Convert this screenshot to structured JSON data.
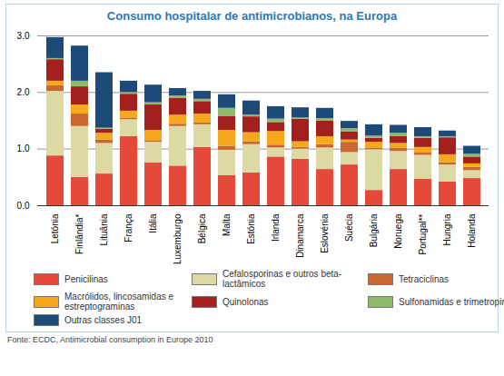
{
  "chart_data": {
    "type": "bar",
    "stacked": true,
    "grid": true,
    "legend": "bottom",
    "title": "Consumo hospitalar de antimicrobianos, na Europa",
    "source": "Fonte: ECDC, Antimicrobial consumption in Europe 2010",
    "categories": [
      "Letónia",
      "Finlândia*",
      "Lituânia",
      "França",
      "Itália",
      "Luxemburgo",
      "Bélgica",
      "Malta",
      "Estónia",
      "Irlanda",
      "Dinamarca",
      "Eslovénia",
      "Suécia",
      "Bulgária",
      "Noruega",
      "Portugal**",
      "Hungria",
      "Holanda"
    ],
    "ylim": [
      0,
      3
    ],
    "yticks": [
      0,
      1,
      2,
      3
    ],
    "series": [
      {
        "name": "Penicilinas",
        "color": "#e5493a",
        "values": [
          0.88,
          0.5,
          0.56,
          1.22,
          0.76,
          0.7,
          1.03,
          0.53,
          0.58,
          0.86,
          0.82,
          0.64,
          0.72,
          0.27,
          0.64,
          0.47,
          0.42,
          0.48
        ]
      },
      {
        "name": "Cefalosporinas e outros beta-lactâmicos",
        "color": "#dcd9a3",
        "values": [
          1.14,
          0.9,
          0.54,
          0.3,
          0.36,
          0.7,
          0.4,
          0.45,
          0.5,
          0.16,
          0.18,
          0.38,
          0.22,
          0.72,
          0.32,
          0.42,
          0.3,
          0.14
        ]
      },
      {
        "name": "Tetraciclinas",
        "color": "#c8682e",
        "values": [
          0.1,
          0.22,
          0.06,
          0.03,
          0.03,
          0.04,
          0.03,
          0.07,
          0.05,
          0.05,
          0.03,
          0.06,
          0.18,
          0.03,
          0.06,
          0.04,
          0.04,
          0.06
        ]
      },
      {
        "name": "Macrólidos, lincosamidas e estreptograminas",
        "color": "#f6a81c",
        "values": [
          0.08,
          0.16,
          0.12,
          0.12,
          0.18,
          0.16,
          0.16,
          0.28,
          0.16,
          0.24,
          0.1,
          0.14,
          0.04,
          0.1,
          0.08,
          0.1,
          0.14,
          0.06
        ]
      },
      {
        "name": "Quinolonas",
        "color": "#a3201f",
        "values": [
          0.38,
          0.32,
          0.07,
          0.3,
          0.45,
          0.3,
          0.22,
          0.25,
          0.28,
          0.16,
          0.4,
          0.28,
          0.14,
          0.07,
          0.12,
          0.16,
          0.3,
          0.12
        ]
      },
      {
        "name": "Sulfonamidas e trimetropim",
        "color": "#8dbb6b",
        "values": [
          0.02,
          0.1,
          0.02,
          0.03,
          0.04,
          0.04,
          0.04,
          0.14,
          0.03,
          0.06,
          0.02,
          0.04,
          0.06,
          0.04,
          0.06,
          0.03,
          0.02,
          0.05
        ]
      },
      {
        "name": "Outras classes J01",
        "color": "#1e4a7a",
        "values": [
          0.37,
          0.62,
          0.98,
          0.2,
          0.31,
          0.13,
          0.14,
          0.24,
          0.25,
          0.22,
          0.18,
          0.18,
          0.13,
          0.2,
          0.14,
          0.16,
          0.1,
          0.14
        ]
      }
    ]
  }
}
